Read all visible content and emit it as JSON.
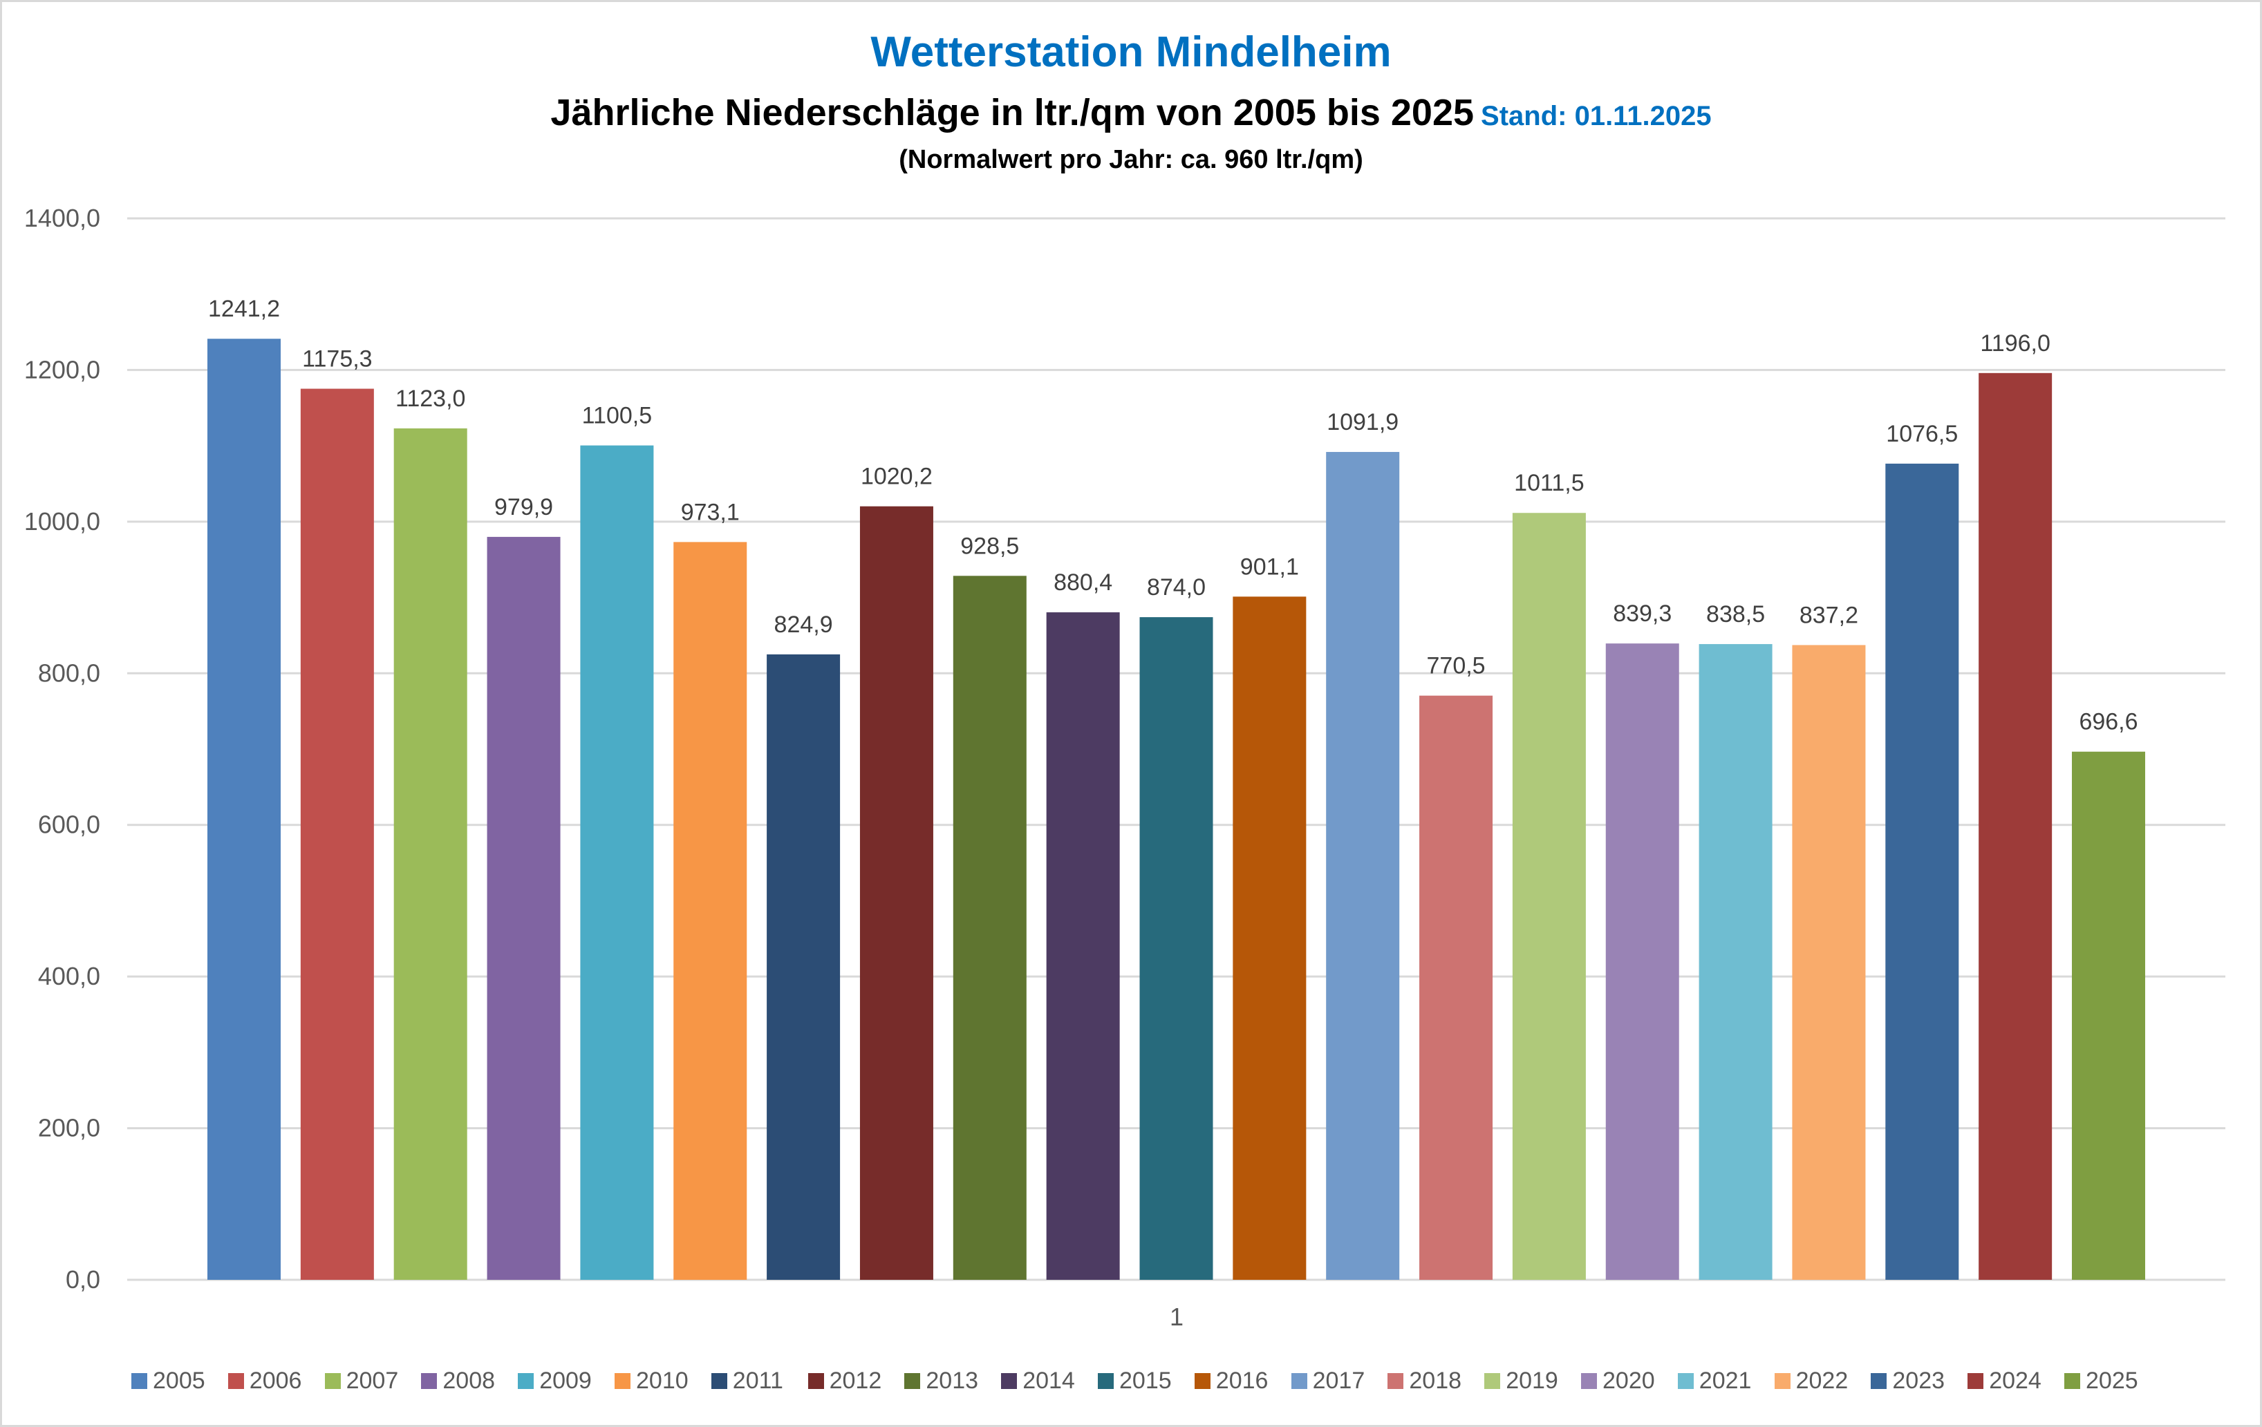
{
  "chart_data": {
    "type": "bar",
    "title": "Wetterstation Mindelheim",
    "subtitle": "Jährliche Niederschläge in ltr./qm von 2005 bis 2025",
    "stand": "Stand: 01.11.2025",
    "note": "(Normalwert pro Jahr: ca. 960 ltr./qm)",
    "xlabel": "",
    "ylabel": "",
    "categories": [
      "1"
    ],
    "ylim": [
      0,
      1400
    ],
    "yticks": [
      0,
      200,
      400,
      600,
      800,
      1000,
      1200,
      1400
    ],
    "ytick_labels": [
      "0,0",
      "200,0",
      "400,0",
      "600,0",
      "800,0",
      "1000,0",
      "1200,0",
      "1400,0"
    ],
    "grid": true,
    "legend_position": "bottom",
    "series": [
      {
        "name": "2005",
        "values": [
          1241.2
        ],
        "label": "1241,2",
        "color": "#4F81BD"
      },
      {
        "name": "2006",
        "values": [
          1175.3
        ],
        "label": "1175,3",
        "color": "#C0504D"
      },
      {
        "name": "2007",
        "values": [
          1123.0
        ],
        "label": "1123,0",
        "color": "#9BBB59"
      },
      {
        "name": "2008",
        "values": [
          979.9
        ],
        "label": "979,9",
        "color": "#8064A2"
      },
      {
        "name": "2009",
        "values": [
          1100.5
        ],
        "label": "1100,5",
        "color": "#4BACC6"
      },
      {
        "name": "2010",
        "values": [
          973.1
        ],
        "label": "973,1",
        "color": "#F79646"
      },
      {
        "name": "2011",
        "values": [
          824.9
        ],
        "label": "824,9",
        "color": "#2C4D75"
      },
      {
        "name": "2012",
        "values": [
          1020.2
        ],
        "label": "1020,2",
        "color": "#772C2A"
      },
      {
        "name": "2013",
        "values": [
          928.5
        ],
        "label": "928,5",
        "color": "#5F7530"
      },
      {
        "name": "2014",
        "values": [
          880.4
        ],
        "label": "880,4",
        "color": "#4D3B62"
      },
      {
        "name": "2015",
        "values": [
          874.0
        ],
        "label": "874,0",
        "color": "#276A7C"
      },
      {
        "name": "2016",
        "values": [
          901.1
        ],
        "label": "901,1",
        "color": "#B65708"
      },
      {
        "name": "2017",
        "values": [
          1091.9
        ],
        "label": "1091,9",
        "color": "#729ACA"
      },
      {
        "name": "2018",
        "values": [
          770.5
        ],
        "label": "770,5",
        "color": "#CD7371"
      },
      {
        "name": "2019",
        "values": [
          1011.5
        ],
        "label": "1011,5",
        "color": "#AFC97A"
      },
      {
        "name": "2020",
        "values": [
          839.3
        ],
        "label": "839,3",
        "color": "#9983B5"
      },
      {
        "name": "2021",
        "values": [
          838.5
        ],
        "label": "838,5",
        "color": "#6FBDD1"
      },
      {
        "name": "2022",
        "values": [
          837.2
        ],
        "label": "837,2",
        "color": "#F9AB6B"
      },
      {
        "name": "2023",
        "values": [
          1076.5
        ],
        "label": "1076,5",
        "color": "#3A6799"
      },
      {
        "name": "2024",
        "values": [
          1196.0
        ],
        "label": "1196,0",
        "color": "#9D3B39"
      },
      {
        "name": "2025",
        "values": [
          696.6
        ],
        "label": "696,6",
        "color": "#7F9E41"
      }
    ]
  }
}
